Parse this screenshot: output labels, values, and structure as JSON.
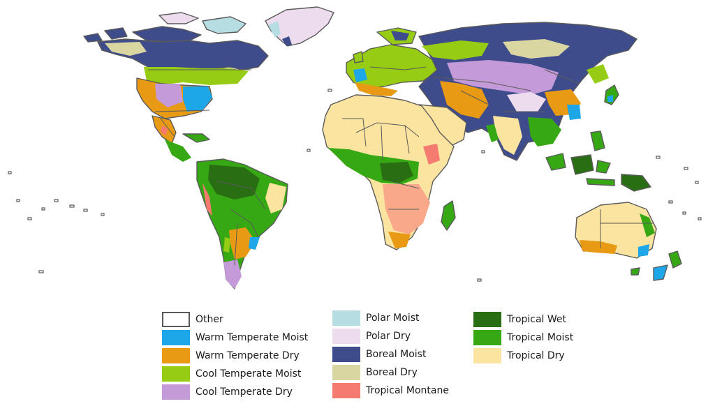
{
  "colors": {
    "other": "#ffffff",
    "warm_temperate_moist": "#1ea7e8",
    "warm_temperate_dry": "#e89a14",
    "cool_temperate_moist": "#96cc14",
    "cool_temperate_dry": "#c49ad8",
    "polar_moist": "#b6dde2",
    "polar_dry": "#ecdcee",
    "boreal_moist": "#3f4c8c",
    "boreal_dry": "#d9d6a2",
    "tropical_montane": "#f57a6f",
    "tropical_wet": "#2a6e14",
    "tropical_moist": "#36a814",
    "tropical_dry": "#fbe4a0",
    "border": "#5a5a5a"
  },
  "legend": [
    {
      "key": "other",
      "label": "Other",
      "color": "#ffffff",
      "outlined": true
    },
    {
      "key": "warm_temperate_moist",
      "label": "Warm Temperate Moist",
      "color": "#1ea7e8"
    },
    {
      "key": "warm_temperate_dry",
      "label": "Warm Temperate Dry",
      "color": "#e89a14"
    },
    {
      "key": "cool_temperate_moist",
      "label": "Cool Temperate Moist",
      "color": "#96cc14"
    },
    {
      "key": "cool_temperate_dry",
      "label": "Cool Temperate Dry",
      "color": "#c49ad8"
    },
    {
      "key": "polar_moist",
      "label": "Polar Moist",
      "color": "#b6dde2"
    },
    {
      "key": "polar_dry",
      "label": "Polar Dry",
      "color": "#ecdcee"
    },
    {
      "key": "boreal_moist",
      "label": "Boreal Moist",
      "color": "#3f4c8c"
    },
    {
      "key": "boreal_dry",
      "label": "Boreal Dry",
      "color": "#d9d6a2"
    },
    {
      "key": "tropical_montane",
      "label": "Tropical Montane",
      "color": "#f57a6f"
    },
    {
      "key": "tropical_wet",
      "label": "Tropical Wet",
      "color": "#2a6e14"
    },
    {
      "key": "tropical_moist",
      "label": "Tropical Moist",
      "color": "#36a814"
    },
    {
      "key": "tropical_dry",
      "label": "Tropical Dry",
      "color": "#fbe4a0"
    }
  ]
}
